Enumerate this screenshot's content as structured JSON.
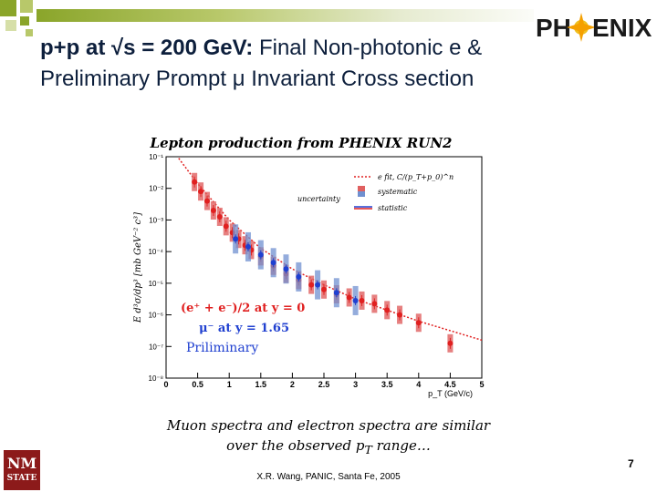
{
  "slide": {
    "title_bold": "p+p at √s = 200 GeV:",
    "title_rest": " Final Non-photonic e &",
    "title_line2": "Preliminary Prompt μ Invariant Cross section",
    "caption_line1": "Muon spectra and electron spectra are similar",
    "caption_line2_pre": "over the observed p",
    "caption_line2_sub": "T",
    "caption_line2_post": " range…",
    "footer": "X.R. Wang, PANIC, Santa Fe, 2005",
    "slide_number": "7",
    "logo_text_left": "PH",
    "logo_text_right": "ENIX",
    "nmsu_top": "NM",
    "nmsu_bottom": "STATE"
  },
  "colors": {
    "accent_green": "#8aa52a",
    "title_color": "#0d1f3c",
    "electron_red": "#e02020",
    "muon_blue": "#2040d0",
    "systematic_red": "#e06060",
    "systematic_blue": "#7090d0",
    "nmsu_red": "#8c1a1a"
  },
  "chart_data": {
    "type": "scatter",
    "title": "Lepton production from PHENIX RUN2",
    "xlabel": "p_T (GeV/c)",
    "ylabel": "E d³σ/dp³ [mb GeV⁻² c³]",
    "xlim": [
      0,
      5
    ],
    "ylim_log10": [
      -8,
      -1
    ],
    "x_ticks": [
      "0",
      "0.5",
      "1",
      "1.5",
      "2",
      "2.5",
      "3",
      "3.5",
      "4",
      "4.5",
      "5"
    ],
    "y_ticks": [
      "10⁻¹",
      "10⁻²",
      "10⁻³",
      "10⁻⁴",
      "10⁻⁵",
      "10⁻⁶",
      "10⁻⁷",
      "10⁻⁸"
    ],
    "legend": {
      "fit": "e fit, C/(p_T+p_0)^n",
      "systematic": "systematic",
      "statistic": "statistic",
      "uncertainty": "uncertainty"
    },
    "labels": {
      "electron": "(e⁺ + e⁻)/2 at y = 0",
      "muon": "μ⁻ at y = 1.65",
      "preliminary": "Priliminary"
    },
    "series": [
      {
        "name": "(e⁺ + e⁻)/2 at y = 0",
        "x": [
          0.45,
          0.55,
          0.65,
          0.75,
          0.85,
          0.95,
          1.05,
          1.15,
          1.25,
          1.35,
          1.5,
          1.7,
          1.9,
          2.1,
          2.3,
          2.5,
          2.7,
          2.9,
          3.1,
          3.3,
          3.5,
          3.7,
          4.0,
          4.5
        ],
        "log10_y": [
          -1.8,
          -2.1,
          -2.4,
          -2.7,
          -2.9,
          -3.2,
          -3.4,
          -3.6,
          -3.8,
          -3.95,
          -4.15,
          -4.45,
          -4.7,
          -4.9,
          -5.05,
          -5.2,
          -5.35,
          -5.45,
          -5.55,
          -5.65,
          -5.85,
          -6.0,
          -6.25,
          -6.9
        ]
      },
      {
        "name": "μ⁻ at y = 1.65",
        "x": [
          1.1,
          1.3,
          1.5,
          1.7,
          1.9,
          2.1,
          2.4,
          2.7,
          3.0
        ],
        "log10_y": [
          -3.6,
          -3.85,
          -4.1,
          -4.35,
          -4.55,
          -4.8,
          -5.05,
          -5.3,
          -5.55
        ]
      }
    ],
    "fit_curve": {
      "x": [
        0.2,
        0.5,
        1.0,
        1.5,
        2.0,
        2.5,
        3.0,
        3.5,
        4.0,
        4.5,
        5.0
      ],
      "log10_y": [
        -1.05,
        -1.85,
        -3.0,
        -3.9,
        -4.55,
        -5.05,
        -5.5,
        -5.85,
        -6.2,
        -6.5,
        -6.8
      ]
    }
  }
}
